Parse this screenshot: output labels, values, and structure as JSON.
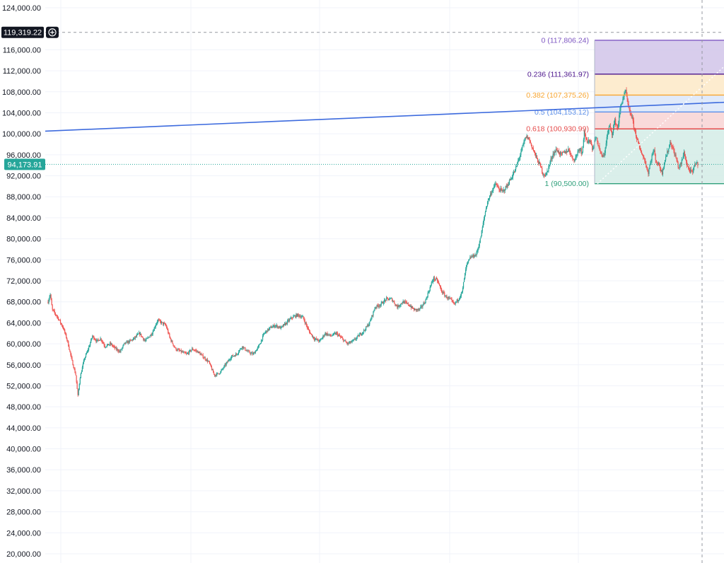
{
  "chart_data": {
    "type": "candlestick",
    "y_axis": {
      "position": "left",
      "ylim": [
        20000,
        124000
      ],
      "ticks": [
        "124,000.00",
        "116,000.00",
        "112,000.00",
        "108,000.00",
        "104,000.00",
        "100,000.00",
        "96,000.00",
        "92,000.00",
        "88,000.00",
        "84,000.00",
        "80,000.00",
        "76,000.00",
        "72,000.00",
        "68,000.00",
        "64,000.00",
        "60,000.00",
        "56,000.00",
        "52,000.00",
        "48,000.00",
        "44,000.00",
        "40,000.00",
        "36,000.00",
        "32,000.00",
        "28,000.00",
        "24,000.00",
        "20,000.00"
      ]
    },
    "crosshair_price": {
      "label": "119,319.22",
      "value": 119319.22
    },
    "last_price": {
      "label": "94,173.91",
      "value": 94173.91,
      "color": "#26a69a"
    },
    "grid": true,
    "price_path": [
      [
        0,
        68000
      ],
      [
        3,
        69500
      ],
      [
        6,
        66500
      ],
      [
        14,
        65000
      ],
      [
        22,
        63000
      ],
      [
        28,
        60500
      ],
      [
        34,
        57000
      ],
      [
        40,
        54000
      ],
      [
        43,
        50000
      ],
      [
        46,
        53500
      ],
      [
        52,
        57000
      ],
      [
        58,
        59000
      ],
      [
        64,
        61500
      ],
      [
        70,
        60500
      ],
      [
        76,
        61000
      ],
      [
        82,
        59500
      ],
      [
        90,
        60000
      ],
      [
        98,
        59000
      ],
      [
        104,
        58500
      ],
      [
        110,
        60000
      ],
      [
        118,
        60500
      ],
      [
        124,
        61000
      ],
      [
        132,
        62000
      ],
      [
        140,
        60500
      ],
      [
        150,
        62000
      ],
      [
        158,
        64500
      ],
      [
        164,
        64000
      ],
      [
        170,
        63500
      ],
      [
        176,
        61000
      ],
      [
        184,
        59000
      ],
      [
        192,
        58500
      ],
      [
        200,
        58000
      ],
      [
        208,
        59000
      ],
      [
        216,
        58500
      ],
      [
        224,
        57500
      ],
      [
        232,
        56500
      ],
      [
        240,
        54000
      ],
      [
        248,
        54500
      ],
      [
        256,
        56000
      ],
      [
        264,
        57500
      ],
      [
        272,
        58000
      ],
      [
        280,
        59500
      ],
      [
        288,
        58500
      ],
      [
        296,
        58000
      ],
      [
        304,
        59500
      ],
      [
        312,
        62000
      ],
      [
        320,
        63000
      ],
      [
        328,
        63500
      ],
      [
        336,
        63000
      ],
      [
        344,
        64000
      ],
      [
        352,
        65000
      ],
      [
        360,
        65500
      ],
      [
        368,
        65000
      ],
      [
        376,
        62500
      ],
      [
        384,
        61000
      ],
      [
        392,
        60500
      ],
      [
        400,
        62000
      ],
      [
        408,
        61500
      ],
      [
        416,
        62000
      ],
      [
        424,
        61000
      ],
      [
        432,
        60000
      ],
      [
        440,
        60500
      ],
      [
        448,
        61500
      ],
      [
        456,
        62500
      ],
      [
        464,
        64000
      ],
      [
        472,
        67000
      ],
      [
        480,
        67500
      ],
      [
        488,
        68500
      ],
      [
        496,
        68500
      ],
      [
        504,
        67000
      ],
      [
        512,
        68000
      ],
      [
        520,
        67500
      ],
      [
        528,
        66500
      ],
      [
        536,
        66500
      ],
      [
        544,
        68000
      ],
      [
        552,
        71000
      ],
      [
        556,
        72500
      ],
      [
        562,
        72000
      ],
      [
        568,
        70000
      ],
      [
        574,
        69000
      ],
      [
        580,
        68500
      ],
      [
        586,
        67500
      ],
      [
        592,
        68500
      ],
      [
        598,
        70000
      ],
      [
        600,
        72000
      ],
      [
        604,
        75000
      ],
      [
        610,
        76500
      ],
      [
        618,
        77000
      ],
      [
        624,
        80000
      ],
      [
        630,
        84500
      ],
      [
        634,
        87000
      ],
      [
        640,
        89000
      ],
      [
        646,
        90500
      ],
      [
        650,
        89500
      ],
      [
        656,
        89000
      ],
      [
        662,
        90000
      ],
      [
        668,
        91500
      ],
      [
        674,
        93000
      ],
      [
        680,
        95500
      ],
      [
        686,
        98000
      ],
      [
        690,
        99500
      ],
      [
        694,
        99000
      ],
      [
        700,
        97000
      ],
      [
        706,
        95000
      ],
      [
        710,
        94000
      ],
      [
        714,
        92500
      ],
      [
        718,
        92000
      ],
      [
        722,
        93500
      ],
      [
        728,
        96000
      ],
      [
        734,
        97000
      ],
      [
        740,
        96000
      ],
      [
        746,
        96500
      ],
      [
        752,
        97000
      ],
      [
        756,
        95500
      ],
      [
        760,
        95000
      ],
      [
        764,
        96500
      ],
      [
        768,
        97500
      ],
      [
        770,
        96000
      ],
      [
        774,
        100500
      ],
      [
        778,
        98000
      ],
      [
        782,
        99000
      ],
      [
        786,
        97000
      ],
      [
        790,
        99500
      ],
      [
        794,
        98000
      ],
      [
        798,
        96000
      ],
      [
        802,
        95500
      ],
      [
        806,
        99000
      ],
      [
        810,
        101500
      ],
      [
        814,
        100000
      ],
      [
        818,
        102500
      ],
      [
        822,
        101000
      ],
      [
        826,
        105000
      ],
      [
        830,
        107000
      ],
      [
        834,
        108000
      ],
      [
        838,
        104500
      ],
      [
        842,
        103500
      ],
      [
        846,
        101000
      ],
      [
        850,
        99000
      ],
      [
        854,
        97000
      ],
      [
        858,
        96000
      ],
      [
        862,
        94500
      ],
      [
        866,
        92500
      ],
      [
        870,
        95000
      ],
      [
        874,
        97000
      ],
      [
        878,
        94500
      ],
      [
        882,
        94000
      ],
      [
        886,
        92500
      ],
      [
        890,
        95000
      ],
      [
        894,
        96500
      ],
      [
        898,
        98500
      ],
      [
        902,
        97000
      ],
      [
        906,
        95500
      ],
      [
        910,
        93500
      ],
      [
        914,
        94500
      ],
      [
        918,
        96500
      ],
      [
        922,
        94000
      ],
      [
        926,
        93000
      ],
      [
        930,
        92500
      ],
      [
        934,
        94500
      ],
      [
        938,
        94173.91
      ]
    ],
    "fibonacci": {
      "levels": [
        {
          "label": "0 (117,806.24)",
          "value": 117806.24,
          "color": "#7e57c2"
        },
        {
          "label": "0.236 (111,361.97)",
          "value": 111361.97,
          "color": "#4a148c"
        },
        {
          "label": "0.382 (107,375.26)",
          "value": 107375.26,
          "color": "#f7a530"
        },
        {
          "label": "0.5 (104,153.12)",
          "value": 104153.12,
          "color": "#5c8fe8"
        },
        {
          "label": "0.618 (100,930.99)",
          "value": 100930.99,
          "color": "#e54b4b"
        },
        {
          "label": "1 (90,500.00)",
          "value": 90500.0,
          "color": "#2e9f7a"
        }
      ],
      "band_colors": [
        "#d1c4e9",
        "#fde9c7",
        "#dbe6f9",
        "#f8d4d4",
        "#d3ece6"
      ]
    },
    "trendline": {
      "from": [
        0,
        100500
      ],
      "to": [
        1020,
        106000
      ],
      "color": "#3d6bde"
    }
  }
}
